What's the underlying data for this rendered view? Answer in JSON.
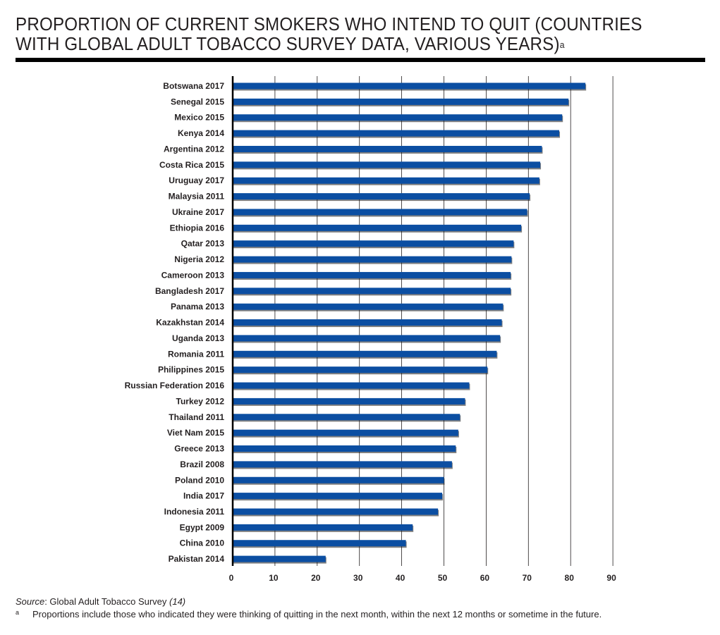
{
  "title": {
    "main": "PROPORTION OF CURRENT SMOKERS WHO INTEND TO QUIT (COUNTRIES WITH GLOBAL ADULT TOBACCO SURVEY DATA, VARIOUS YEARS)",
    "superscript": "a"
  },
  "colors": {
    "bar": "#0b4ea2",
    "bar_shadow": "#1a1a1a",
    "grid": "#231f20",
    "axis": "#000000"
  },
  "chart_data": {
    "type": "bar",
    "orientation": "horizontal",
    "categories": [
      "Botswana 2017",
      "Senegal 2015",
      "Mexico 2015",
      "Kenya 2014",
      "Argentina 2012",
      "Costa Rica 2015",
      "Uruguay 2017",
      "Malaysia 2011",
      "Ukraine 2017",
      "Ethiopia 2016",
      "Qatar 2013",
      "Nigeria 2012",
      "Cameroon 2013",
      "Bangladesh 2017",
      "Panama 2013",
      "Kazakhstan 2014",
      "Uganda 2013",
      "Romania 2011",
      "Philippines 2015",
      "Russian Federation 2016",
      "Turkey 2012",
      "Thailand 2011",
      "Viet Nam 2015",
      "Greece 2013",
      "Brazil 2008",
      "Poland 2010",
      "India 2017",
      "Indonesia 2011",
      "Egypt 2009",
      "China 2010",
      "Pakistan 2014"
    ],
    "values": [
      83.5,
      79.5,
      78,
      77.3,
      73.2,
      72.8,
      72.6,
      70.3,
      69.7,
      68.3,
      66.5,
      66,
      65.8,
      65.8,
      64,
      63.7,
      63.3,
      62.5,
      60.3,
      56,
      55,
      53.8,
      53.4,
      52.8,
      51.9,
      50,
      49.6,
      48.6,
      42.6,
      41,
      22
    ],
    "xlim": [
      0,
      90
    ],
    "xticks": [
      "0",
      "10",
      "20",
      "30",
      "40",
      "50",
      "60",
      "70",
      "80",
      "90"
    ],
    "xtick_values": [
      0,
      10,
      20,
      30,
      40,
      50,
      60,
      70,
      80,
      90
    ],
    "grid": "vertical",
    "legend": "none"
  },
  "source": {
    "lead": "Source",
    "text": ": Global Adult Tobacco Survey ",
    "ref": "(14)"
  },
  "footnote": {
    "mark": "a",
    "text": "Proportions include those who indicated they were thinking of quitting in the next month, within the next 12 months or sometime in the future."
  }
}
